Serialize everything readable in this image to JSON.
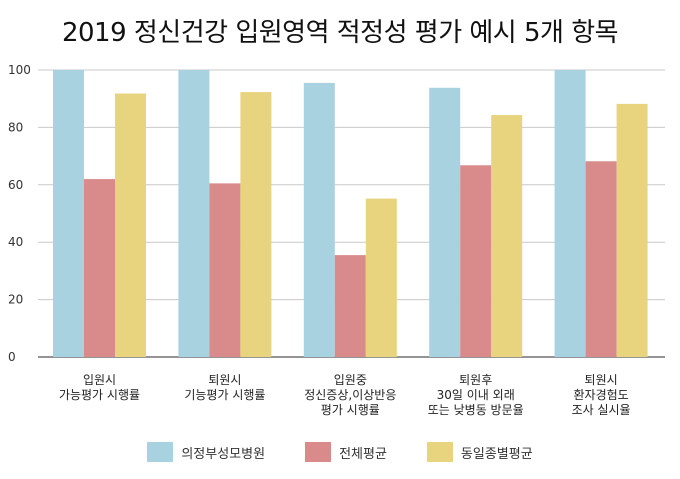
{
  "chart_data": {
    "type": "bar",
    "title": "2019 정신건강 입원영역 적정성 평가 예시 5개 항목",
    "xlabel": "",
    "ylabel": "",
    "ylim": [
      0,
      100
    ],
    "yticks": [
      0,
      20,
      40,
      60,
      80,
      100
    ],
    "grid": true,
    "legend_position": "bottom",
    "categories": [
      [
        "입원시",
        "가능평가 시행률"
      ],
      [
        "퇴원시",
        "기능평가 시행률"
      ],
      [
        "입원중",
        "정신증상,이상반응",
        "평가 시행률"
      ],
      [
        "퇴원후",
        "30일 이내 외래",
        "또는 낮병동 방문율"
      ],
      [
        "퇴원시",
        "환자경험도",
        "조사 실시율"
      ]
    ],
    "series": [
      {
        "name": "의정부성모병원",
        "color": "#a9d2e0",
        "values": [
          100,
          100,
          95.5,
          93.8,
          100
        ]
      },
      {
        "name": "전체평균",
        "color": "#d98b8b",
        "values": [
          62,
          60.5,
          35.5,
          66.8,
          68.2
        ]
      },
      {
        "name": "동일종별평균",
        "color": "#e8d37e",
        "values": [
          91.8,
          92.3,
          55.2,
          84.3,
          88.2
        ]
      }
    ]
  }
}
